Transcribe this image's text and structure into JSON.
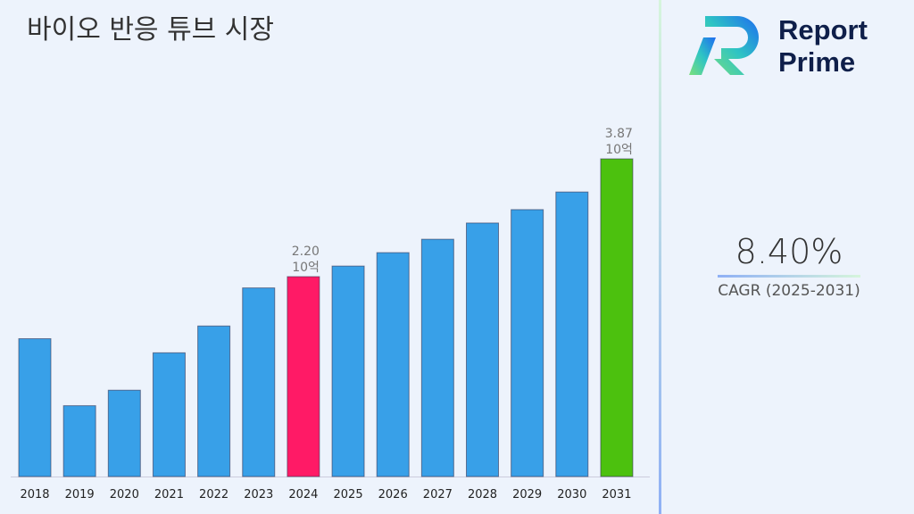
{
  "title": "바이오 반응 튜브 시장",
  "logo": {
    "line1": "Report",
    "line2": "Prime"
  },
  "cagr": {
    "value": "8.40%",
    "label": "CAGR (2025-2031)"
  },
  "colors": {
    "default": "#38a0e8",
    "highlight_2024": "#ff1a66",
    "highlight_2031": "#4cc10e"
  },
  "chart_data": {
    "type": "bar",
    "categories": [
      "2018",
      "2019",
      "2020",
      "2021",
      "2022",
      "2023",
      "2024",
      "2025",
      "2026",
      "2027",
      "2028",
      "2029",
      "2030",
      "2031"
    ],
    "values": [
      1.32,
      0.37,
      0.59,
      1.12,
      1.5,
      2.04,
      2.2,
      2.35,
      2.54,
      2.73,
      2.96,
      3.15,
      3.4,
      3.87
    ],
    "data_labels": {
      "2024": [
        "2.20",
        "10억"
      ],
      "2031": [
        "3.87",
        "10억"
      ]
    },
    "title": "바이오 반응 튜브 시장",
    "xlabel": "",
    "ylabel": "",
    "grid": false
  }
}
